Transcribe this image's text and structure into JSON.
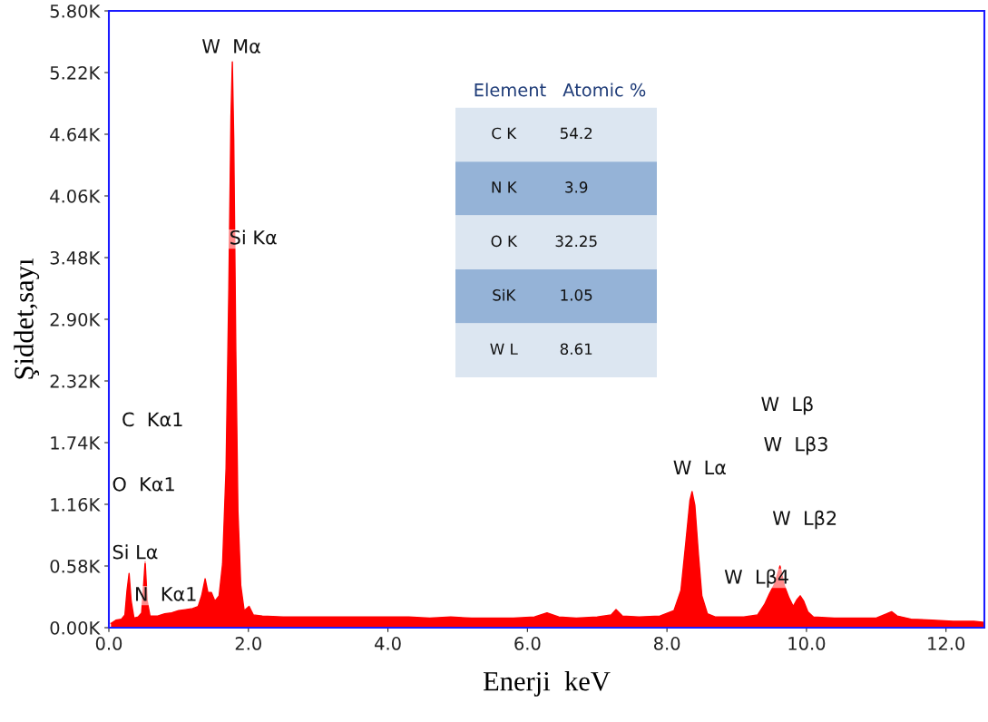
{
  "chart_data": [
    {
      "type": "area",
      "xlabel": "Enerji  keV",
      "ylabel": "Şiddet,sayı",
      "xlim": [
        0,
        12.55
      ],
      "ylim": [
        0,
        5800
      ],
      "xticks": [
        {
          "value": 0,
          "label": "0.0"
        },
        {
          "value": 2,
          "label": "2.0"
        },
        {
          "value": 4,
          "label": "4.0"
        },
        {
          "value": 6,
          "label": "6.0"
        },
        {
          "value": 8,
          "label": "8.0"
        },
        {
          "value": 10,
          "label": "10.0"
        },
        {
          "value": 12,
          "label": "12.0"
        }
      ],
      "yticks": [
        {
          "value": 0,
          "label": "0.00K"
        },
        {
          "value": 580,
          "label": "0.58K"
        },
        {
          "value": 1160,
          "label": "1.16K"
        },
        {
          "value": 1740,
          "label": "1.74K"
        },
        {
          "value": 2320,
          "label": "2.32K"
        },
        {
          "value": 2900,
          "label": "2.90K"
        },
        {
          "value": 3480,
          "label": "3.48K"
        },
        {
          "value": 4060,
          "label": "4.06K"
        },
        {
          "value": 4640,
          "label": "4.64K"
        },
        {
          "value": 5220,
          "label": "5.22K"
        },
        {
          "value": 5800,
          "label": "5.80K"
        }
      ],
      "grid": false,
      "legend": false,
      "series": [
        {
          "color": "#ff0000",
          "x": [
            0.03,
            0.1,
            0.18,
            0.23,
            0.26,
            0.29,
            0.32,
            0.36,
            0.42,
            0.47,
            0.5,
            0.52,
            0.55,
            0.59,
            0.7,
            0.8,
            0.9,
            1.0,
            1.1,
            1.2,
            1.28,
            1.33,
            1.38,
            1.42,
            1.47,
            1.52,
            1.58,
            1.63,
            1.68,
            1.72,
            1.75,
            1.77,
            1.79,
            1.82,
            1.85,
            1.89,
            1.94,
            2.01,
            2.07,
            2.2,
            2.5,
            2.8,
            3.1,
            3.4,
            3.7,
            4.0,
            4.3,
            4.6,
            4.9,
            5.2,
            5.5,
            5.8,
            6.1,
            6.28,
            6.45,
            6.7,
            7.0,
            7.2,
            7.27,
            7.36,
            7.6,
            7.9,
            8.1,
            8.2,
            8.27,
            8.33,
            8.36,
            8.4,
            8.45,
            8.5,
            8.58,
            8.7,
            8.9,
            9.1,
            9.3,
            9.4,
            9.47,
            9.55,
            9.62,
            9.68,
            9.75,
            9.81,
            9.86,
            9.91,
            9.96,
            10.02,
            10.1,
            10.4,
            10.7,
            11.0,
            11.15,
            11.22,
            11.3,
            11.5,
            11.8,
            12.1,
            12.4,
            12.55
          ],
          "values": [
            40,
            70,
            80,
            120,
            350,
            510,
            250,
            90,
            100,
            140,
            420,
            620,
            250,
            110,
            110,
            130,
            140,
            160,
            170,
            180,
            200,
            300,
            460,
            330,
            330,
            250,
            300,
            600,
            1500,
            3200,
            4800,
            5320,
            4600,
            2600,
            1100,
            400,
            160,
            200,
            120,
            110,
            100,
            100,
            100,
            100,
            100,
            100,
            100,
            90,
            100,
            90,
            90,
            90,
            100,
            140,
            100,
            90,
            100,
            120,
            170,
            110,
            100,
            110,
            160,
            350,
            800,
            1200,
            1280,
            1150,
            700,
            300,
            130,
            100,
            100,
            100,
            120,
            220,
            320,
            420,
            580,
            400,
            280,
            200,
            260,
            300,
            250,
            150,
            100,
            90,
            90,
            90,
            130,
            150,
            110,
            80,
            70,
            60,
            60,
            50
          ]
        }
      ],
      "annotations": [
        "W  Mα",
        "Si Kα",
        "C  Kα1",
        "O  Kα1",
        "Si Lα",
        "N  Kα1",
        "W  Lα",
        "W  Lβ",
        "W  Lβ3",
        "W  Lβ2",
        "W  Lβ4"
      ]
    },
    {
      "type": "other",
      "xlabel": "Element",
      "ylabel": "Atomic %",
      "categories": [
        "C K",
        "N K",
        "O K",
        "SiK",
        "W L"
      ],
      "values": [
        54.2,
        3.9,
        32.25,
        1.05,
        8.61
      ],
      "colors": [
        "#dce6f1",
        "#95b3d7",
        "#dce6f1",
        "#95b3d7",
        "#dce6f1"
      ],
      "data_labels": true
    }
  ]
}
